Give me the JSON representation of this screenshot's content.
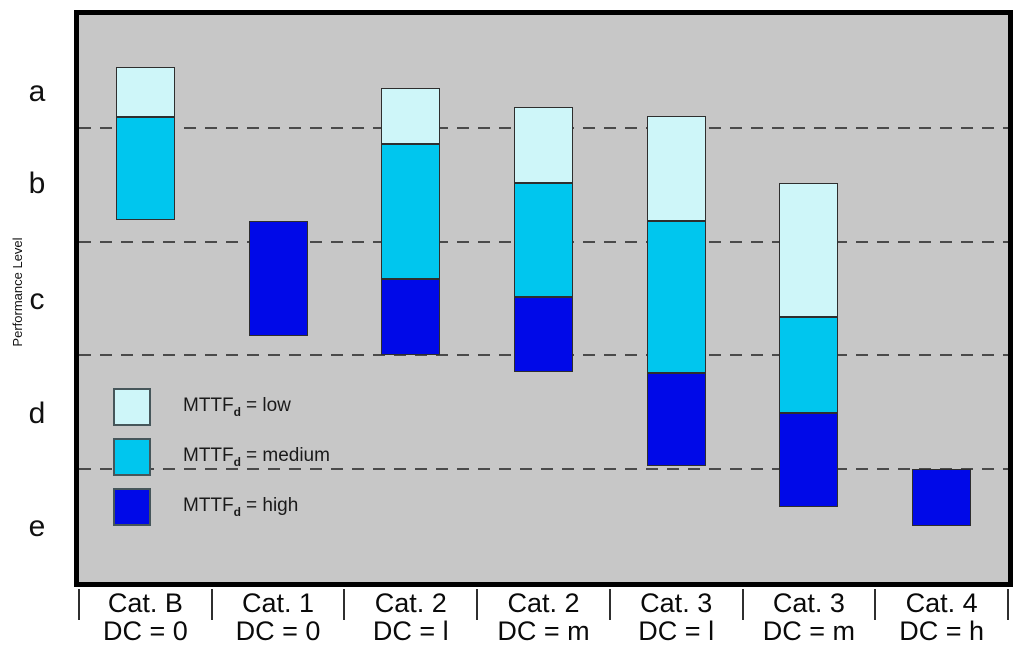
{
  "chart_data": {
    "type": "bar",
    "variant": "floating-stacked-range-columns (ISO 13849-1 performance level / category diagram)",
    "title": "",
    "xlabel": "",
    "ylabel": "Performance Level",
    "y_levels": [
      "a",
      "b",
      "c",
      "d",
      "e"
    ],
    "grid": "horizontal dashed lines separating performance level bands a-e",
    "legend_position": "inside plot area, lower left",
    "colors": {
      "low": "#cef6f9",
      "medium": "#00c6ee",
      "high": "#0009e8",
      "plot_background": "#c7c7c7",
      "frame": "#000000",
      "gridline": "#4a4a4a"
    },
    "legend": [
      {
        "key": "low",
        "prefix": "MTTF",
        "sub": "d",
        "suffix": "= low"
      },
      {
        "key": "medium",
        "prefix": "MTTF",
        "sub": "d",
        "suffix": "= medium"
      },
      {
        "key": "high",
        "prefix": "MTTF",
        "sub": "d",
        "suffix": "= high"
      }
    ],
    "categories": [
      {
        "label": "Cat. B",
        "dc": "DC = 0"
      },
      {
        "label": "Cat. 1",
        "dc": "DC = 0"
      },
      {
        "label": "Cat. 2",
        "dc": "DC = l"
      },
      {
        "label": "Cat. 2",
        "dc": "DC = m"
      },
      {
        "label": "Cat. 3",
        "dc": "DC = l"
      },
      {
        "label": "Cat. 3",
        "dc": "DC = m"
      },
      {
        "label": "Cat. 4",
        "dc": "DC = h"
      }
    ],
    "pl_scale_note": "segment from/to use a continuous vertical scale where 0 = top of band a and 5 = bottom of band e; integers 1-4 are the dashed gridlines; larger value = lower performance level",
    "bars": [
      {
        "category": "Cat. B DC = 0",
        "segments": [
          {
            "mttfd": "low",
            "from": 0.46,
            "to": 0.9
          },
          {
            "mttfd": "medium",
            "from": 0.9,
            "to": 1.81
          }
        ]
      },
      {
        "category": "Cat. 1 DC = 0",
        "segments": [
          {
            "mttfd": "high",
            "from": 1.82,
            "to": 2.83
          }
        ]
      },
      {
        "category": "Cat. 2 DC = l",
        "segments": [
          {
            "mttfd": "low",
            "from": 0.64,
            "to": 1.14
          },
          {
            "mttfd": "medium",
            "from": 1.14,
            "to": 2.33
          },
          {
            "mttfd": "high",
            "from": 2.33,
            "to": 3.0
          }
        ]
      },
      {
        "category": "Cat. 2 DC = m",
        "segments": [
          {
            "mttfd": "low",
            "from": 0.81,
            "to": 1.48
          },
          {
            "mttfd": "medium",
            "from": 1.48,
            "to": 2.49
          },
          {
            "mttfd": "high",
            "from": 2.49,
            "to": 3.15
          }
        ]
      },
      {
        "category": "Cat. 3 DC = l",
        "segments": [
          {
            "mttfd": "low",
            "from": 0.89,
            "to": 1.82
          },
          {
            "mttfd": "medium",
            "from": 1.82,
            "to": 3.16
          },
          {
            "mttfd": "high",
            "from": 3.16,
            "to": 3.98
          }
        ]
      },
      {
        "category": "Cat. 3 DC = m",
        "segments": [
          {
            "mttfd": "low",
            "from": 1.48,
            "to": 2.66
          },
          {
            "mttfd": "medium",
            "from": 2.66,
            "to": 3.51
          },
          {
            "mttfd": "high",
            "from": 3.51,
            "to": 4.34
          }
        ]
      },
      {
        "category": "Cat. 4 DC = h",
        "segments": [
          {
            "mttfd": "high",
            "from": 4.0,
            "to": 4.51
          }
        ]
      }
    ]
  }
}
